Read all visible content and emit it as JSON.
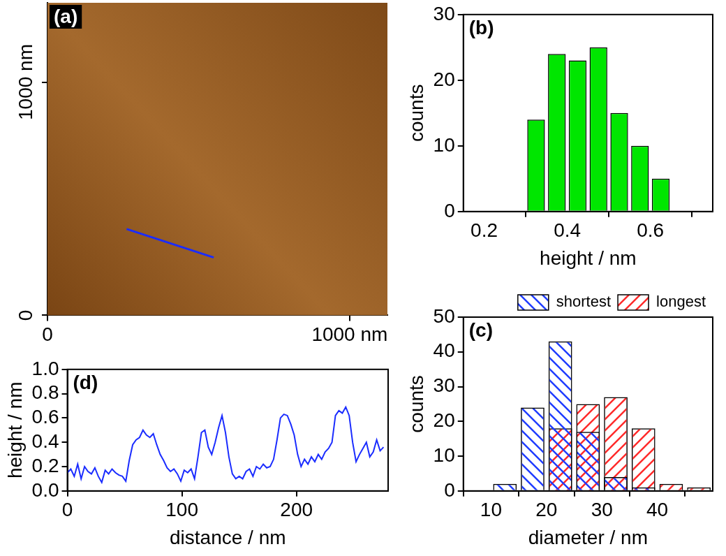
{
  "chart_data": [
    {
      "type": "image",
      "title": "(a)",
      "xlim": [
        0,
        1125
      ],
      "xticks": [
        0,
        {
          "value": 1000,
          "label": "1000 nm"
        }
      ],
      "ylim": [
        0,
        1340
      ],
      "yticks": [
        0,
        {
          "value": 1000,
          "label": "1000 nm"
        }
      ],
      "series": [
        {
          "x": [
            262,
            550
          ],
          "values": [
            370,
            248
          ],
          "color": "#1a2cff"
        }
      ],
      "grid": false
    },
    {
      "type": "histogram",
      "title": "(b)",
      "x_label": "height / nm",
      "y_label": "counts",
      "bins": [
        0.3,
        0.35,
        0.4,
        0.45,
        0.5,
        0.55,
        0.6,
        0.65
      ],
      "values": [
        14,
        24,
        23,
        25,
        15,
        10,
        5
      ],
      "color": "#00e600",
      "xlim": [
        0.15,
        0.75
      ],
      "xticks": [
        0.2,
        0.4,
        0.6
      ],
      "ylim": [
        0,
        30
      ],
      "yticks": [
        0,
        10,
        20,
        30
      ],
      "grid": false
    },
    {
      "type": "histogram",
      "title": "(c)",
      "x_label": "diameter / nm",
      "y_label": "counts",
      "bins": [
        10,
        15,
        20,
        25,
        30,
        35,
        40,
        45,
        50
      ],
      "series": [
        {
          "name": "shortest",
          "color": "#1f3cff",
          "values": [
            2,
            24,
            43,
            17,
            4,
            1,
            0,
            0
          ]
        },
        {
          "name": "longest",
          "color": "#ff2a2a",
          "values": [
            0,
            0,
            18,
            25,
            27,
            18,
            2,
            1
          ]
        }
      ],
      "xlim": [
        5,
        50
      ],
      "xticks": [
        10,
        20,
        30,
        40
      ],
      "ylim": [
        0,
        50
      ],
      "yticks": [
        0,
        10,
        20,
        30,
        40,
        50
      ],
      "legend": "top",
      "grid": false
    },
    {
      "type": "line",
      "title": "(d)",
      "x_label": "distance / nm",
      "y_label": "height / nm",
      "x": [
        0,
        3,
        6,
        9,
        12,
        15,
        18,
        21,
        24,
        27,
        30,
        33,
        36,
        39,
        42,
        45,
        48,
        51,
        54,
        57,
        60,
        63,
        66,
        69,
        72,
        75,
        78,
        81,
        84,
        87,
        90,
        93,
        96,
        99,
        102,
        105,
        108,
        111,
        114,
        117,
        120,
        123,
        126,
        129,
        132,
        135,
        138,
        141,
        144,
        147,
        150,
        153,
        156,
        159,
        162,
        165,
        168,
        171,
        174,
        177,
        180,
        183,
        186,
        189,
        192,
        195,
        198,
        201,
        204,
        207,
        210,
        213,
        216,
        219,
        222,
        225,
        228,
        231,
        234,
        237,
        240,
        243,
        246,
        249,
        252,
        255,
        258,
        261,
        264,
        267,
        270,
        273,
        276
      ],
      "values": [
        0.15,
        0.18,
        0.12,
        0.22,
        0.1,
        0.2,
        0.16,
        0.14,
        0.19,
        0.12,
        0.07,
        0.17,
        0.14,
        0.18,
        0.15,
        0.13,
        0.12,
        0.08,
        0.25,
        0.38,
        0.42,
        0.44,
        0.5,
        0.46,
        0.44,
        0.47,
        0.38,
        0.3,
        0.25,
        0.19,
        0.16,
        0.18,
        0.14,
        0.08,
        0.17,
        0.15,
        0.18,
        0.1,
        0.28,
        0.48,
        0.5,
        0.36,
        0.3,
        0.4,
        0.52,
        0.62,
        0.48,
        0.28,
        0.14,
        0.1,
        0.12,
        0.1,
        0.16,
        0.18,
        0.12,
        0.2,
        0.18,
        0.22,
        0.19,
        0.2,
        0.26,
        0.42,
        0.6,
        0.63,
        0.62,
        0.55,
        0.46,
        0.3,
        0.2,
        0.26,
        0.22,
        0.28,
        0.24,
        0.3,
        0.26,
        0.32,
        0.35,
        0.4,
        0.62,
        0.66,
        0.64,
        0.69,
        0.62,
        0.4,
        0.24,
        0.3,
        0.35,
        0.4,
        0.28,
        0.32,
        0.42,
        0.33,
        0.36
      ],
      "color": "#1a2cff",
      "xlim": [
        0,
        280
      ],
      "xticks": [
        0,
        100,
        200
      ],
      "ylim": [
        0,
        1
      ],
      "yticks": [
        {
          "value": 0,
          "label": "0.0"
        },
        0.2,
        0.4,
        0.6,
        0.8,
        {
          "value": 1,
          "label": "1.0"
        }
      ],
      "grid": false
    }
  ]
}
